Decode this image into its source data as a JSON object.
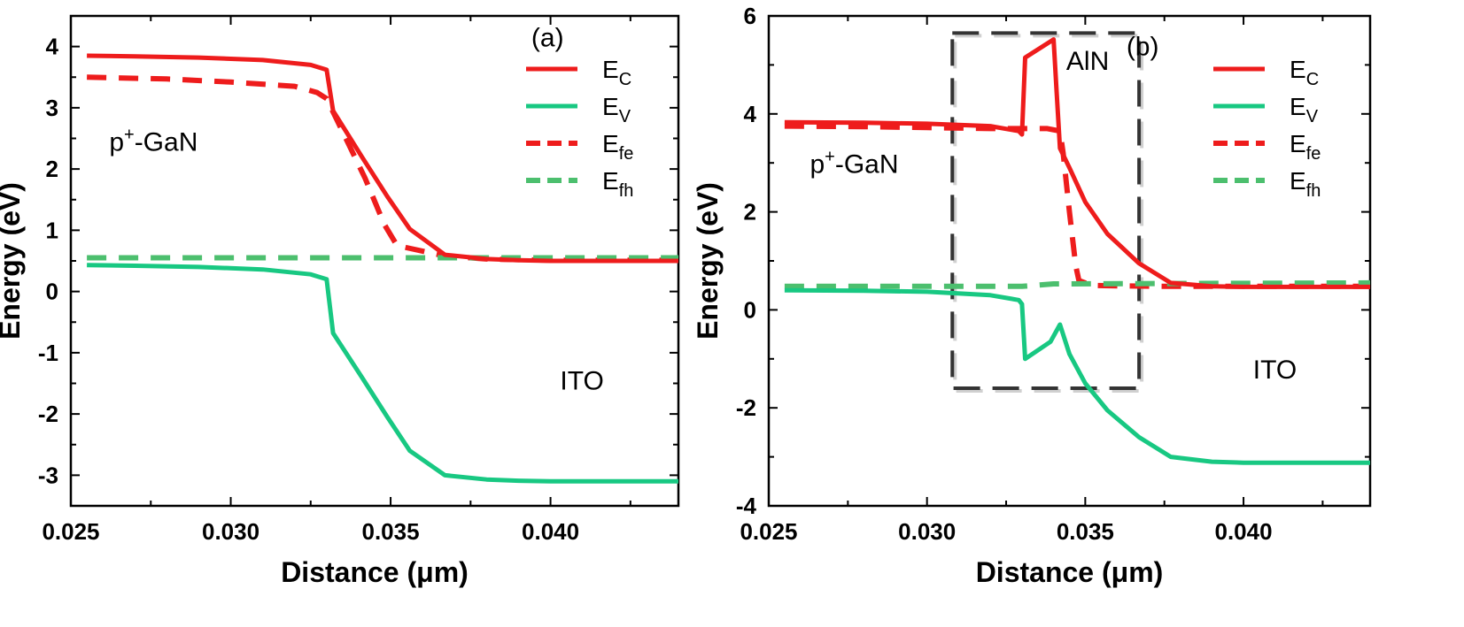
{
  "chart_data": [
    {
      "type": "line",
      "xlabel": "Distance (μm)",
      "ylabel": "Energy (eV)",
      "xlim": [
        0.025,
        0.044
      ],
      "ylim": [
        -3.5,
        4.5
      ],
      "xticks": [
        "0.025",
        "0.030",
        "0.035",
        "0.040"
      ],
      "yticks": [
        "-3",
        "-2",
        "-1",
        "0",
        "1",
        "2",
        "3",
        "4"
      ],
      "xtick_values": [
        0.025,
        0.03,
        0.035,
        0.04
      ],
      "ytick_values": [
        -3,
        -2,
        -1,
        0,
        1,
        2,
        3,
        4
      ],
      "grid": false,
      "legend_position": "top-right",
      "annotations": [
        {
          "text": "(a)",
          "x": 0.0394,
          "y": 4.0
        },
        {
          "text": "p",
          "sup": "+",
          "suffix": "-GaN",
          "x": 0.0262,
          "y": 2.3
        },
        {
          "text": "ITO",
          "x": 0.0403,
          "y": -1.6
        }
      ],
      "series": [
        {
          "name": "E",
          "sub": "C",
          "color": "#ee1c1c",
          "dash": "solid",
          "x": [
            0.0255,
            0.027,
            0.029,
            0.031,
            0.0325,
            0.033,
            0.0332,
            0.0341,
            0.0349,
            0.0356,
            0.0367,
            0.038,
            0.039,
            0.04,
            0.044
          ],
          "y": [
            3.85,
            3.84,
            3.82,
            3.78,
            3.7,
            3.62,
            2.95,
            2.2,
            1.55,
            1.02,
            0.6,
            0.53,
            0.51,
            0.5,
            0.5
          ]
        },
        {
          "name": "E",
          "sub": "V",
          "color": "#18c882",
          "dash": "solid",
          "x": [
            0.0255,
            0.027,
            0.029,
            0.031,
            0.0325,
            0.033,
            0.0332,
            0.0341,
            0.0349,
            0.0356,
            0.0367,
            0.038,
            0.039,
            0.04,
            0.044
          ],
          "y": [
            0.43,
            0.42,
            0.4,
            0.36,
            0.28,
            0.2,
            -0.68,
            -1.4,
            -2.05,
            -2.6,
            -3.0,
            -3.07,
            -3.09,
            -3.1,
            -3.1
          ]
        },
        {
          "name": "E",
          "sub": "fe",
          "color": "#ee1c1c",
          "dash": "dashed",
          "x": [
            0.0255,
            0.028,
            0.03,
            0.032,
            0.0327,
            0.033,
            0.0342,
            0.0348,
            0.0352,
            0.0367,
            0.038,
            0.04,
            0.044
          ],
          "y": [
            3.5,
            3.47,
            3.42,
            3.35,
            3.25,
            3.15,
            1.85,
            1.1,
            0.75,
            0.58,
            0.53,
            0.51,
            0.51
          ]
        },
        {
          "name": "E",
          "sub": "fh",
          "color": "#4cbf6e",
          "dash": "dashed",
          "x": [
            0.0255,
            0.044
          ],
          "y": [
            0.55,
            0.55
          ]
        }
      ]
    },
    {
      "type": "line",
      "xlabel": "Distance (μm)",
      "ylabel": "Energy (eV)",
      "xlim": [
        0.025,
        0.044
      ],
      "ylim": [
        -4,
        6
      ],
      "xticks": [
        "0.025",
        "0.030",
        "0.035",
        "0.040"
      ],
      "yticks": [
        "-4",
        "-2",
        "0",
        "2",
        "4",
        "6"
      ],
      "xtick_values": [
        0.025,
        0.03,
        0.035,
        0.04
      ],
      "ytick_values": [
        -4,
        -2,
        0,
        2,
        4,
        6
      ],
      "grid": false,
      "legend_position": "top-right",
      "annotations": [
        {
          "text": "(b)",
          "x": 0.0363,
          "y": 5.2
        },
        {
          "text": "AlN",
          "x": 0.0344,
          "y": 4.9
        },
        {
          "text": "p",
          "sup": "+",
          "suffix": "-GaN",
          "x": 0.0263,
          "y": 2.8
        },
        {
          "text": "ITO",
          "x": 0.0403,
          "y": -1.4
        }
      ],
      "box": {
        "x": [
          0.0308,
          0.0367
        ],
        "y": [
          -1.6,
          5.65
        ]
      },
      "series": [
        {
          "name": "E",
          "sub": "C",
          "color": "#ee1c1c",
          "dash": "solid",
          "x": [
            0.0255,
            0.028,
            0.03,
            0.032,
            0.0329,
            0.033,
            0.0331,
            0.034,
            0.0341,
            0.0342,
            0.0345,
            0.035,
            0.0357,
            0.0367,
            0.0377,
            0.039,
            0.04,
            0.044
          ],
          "y": [
            3.83,
            3.82,
            3.8,
            3.75,
            3.65,
            3.58,
            5.15,
            5.52,
            4.4,
            3.3,
            2.9,
            2.2,
            1.55,
            0.95,
            0.55,
            0.48,
            0.47,
            0.47
          ]
        },
        {
          "name": "E",
          "sub": "V",
          "color": "#18c882",
          "dash": "solid",
          "x": [
            0.0255,
            0.028,
            0.03,
            0.032,
            0.0329,
            0.033,
            0.0331,
            0.0339,
            0.0342,
            0.0345,
            0.035,
            0.0357,
            0.0367,
            0.0377,
            0.039,
            0.04,
            0.044
          ],
          "y": [
            0.4,
            0.39,
            0.37,
            0.3,
            0.2,
            0.12,
            -1.0,
            -0.65,
            -0.3,
            -0.9,
            -1.5,
            -2.05,
            -2.6,
            -3.0,
            -3.1,
            -3.12,
            -3.12
          ]
        },
        {
          "name": "E",
          "sub": "fe",
          "color": "#ee1c1c",
          "dash": "dashed",
          "x": [
            0.0255,
            0.028,
            0.03,
            0.032,
            0.033,
            0.0338,
            0.0342,
            0.0343,
            0.0345,
            0.0347,
            0.0348,
            0.0352,
            0.036,
            0.0377,
            0.04,
            0.044
          ],
          "y": [
            3.75,
            3.74,
            3.72,
            3.7,
            3.7,
            3.7,
            3.65,
            3.2,
            2.0,
            0.9,
            0.6,
            0.5,
            0.49,
            0.48,
            0.48,
            0.48
          ]
        },
        {
          "name": "E",
          "sub": "fh",
          "color": "#4cbf6e",
          "dash": "dashed",
          "x": [
            0.0255,
            0.033,
            0.034,
            0.044
          ],
          "y": [
            0.48,
            0.48,
            0.53,
            0.55
          ]
        }
      ]
    }
  ]
}
